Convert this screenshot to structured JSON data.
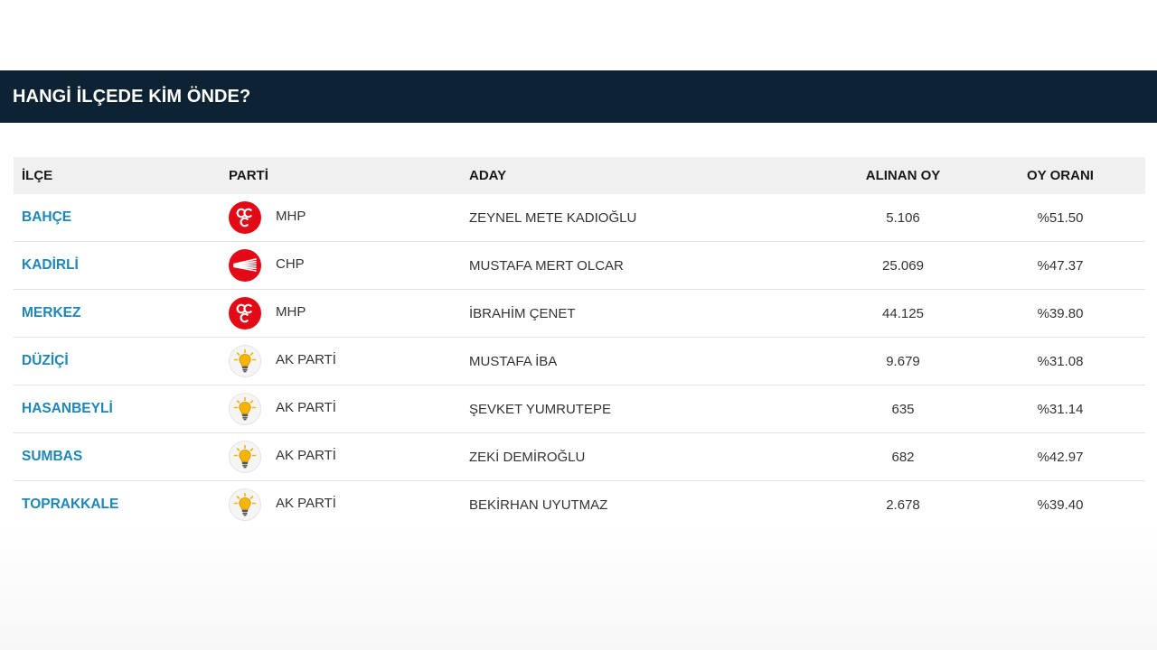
{
  "header": {
    "title": "HANGİ İLÇEDE KİM ÖNDE?"
  },
  "table": {
    "columns": {
      "district": "İLÇE",
      "party": "PARTİ",
      "candidate": "ADAY",
      "votes": "ALINAN OY",
      "ratio": "OY ORANI"
    },
    "rows": [
      {
        "district": "BAHÇE",
        "party": "MHP",
        "party_logo": "mhp-logo-icon",
        "candidate": "ZEYNEL METE KADIOĞLU",
        "votes": "5.106",
        "ratio": "%51.50"
      },
      {
        "district": "KADİRLİ",
        "party": "CHP",
        "party_logo": "chp-logo-icon",
        "candidate": "MUSTAFA MERT OLCAR",
        "votes": "25.069",
        "ratio": "%47.37"
      },
      {
        "district": "MERKEZ",
        "party": "MHP",
        "party_logo": "mhp-logo-icon",
        "candidate": "İBRAHİM ÇENET",
        "votes": "44.125",
        "ratio": "%39.80"
      },
      {
        "district": "DÜZİÇİ",
        "party": "AK PARTİ",
        "party_logo": "ak-parti-logo-icon",
        "candidate": "MUSTAFA İBA",
        "votes": "9.679",
        "ratio": "%31.08"
      },
      {
        "district": "HASANBEYLİ",
        "party": "AK PARTİ",
        "party_logo": "ak-parti-logo-icon",
        "candidate": "ŞEVKET YUMRUTEPE",
        "votes": "635",
        "ratio": "%31.14"
      },
      {
        "district": "SUMBAS",
        "party": "AK PARTİ",
        "party_logo": "ak-parti-logo-icon",
        "candidate": "ZEKİ DEMİROĞLU",
        "votes": "682",
        "ratio": "%42.97"
      },
      {
        "district": "TOPRAKKALE",
        "party": "AK PARTİ",
        "party_logo": "ak-parti-logo-icon",
        "candidate": "BEKİRHAN UYUTMAZ",
        "votes": "2.678",
        "ratio": "%39.40"
      }
    ]
  },
  "colors": {
    "header_bg": "#0d2233",
    "district_link": "#1f86b5",
    "table_header_bg": "#f0f0f0",
    "mhp_red": "#e30a17",
    "chp_red": "#e30a17",
    "ak_yellow": "#f7b500"
  }
}
